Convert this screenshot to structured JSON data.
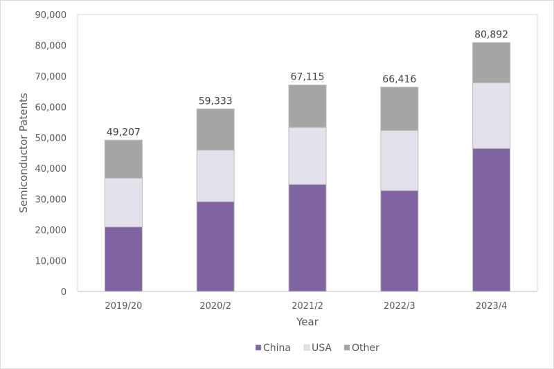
{
  "chart_data": {
    "type": "bar",
    "stacked": true,
    "title": "",
    "xlabel": "Year",
    "ylabel": "Semiconductor Patents",
    "ylim": [
      0,
      90000
    ],
    "yticks": [
      0,
      10000,
      20000,
      30000,
      40000,
      50000,
      60000,
      70000,
      80000,
      90000
    ],
    "ytick_labels": [
      "0",
      "10,000",
      "20,000",
      "30,000",
      "40,000",
      "50,000",
      "60,000",
      "70,000",
      "80,000",
      "90,000"
    ],
    "grid": false,
    "legend_position": "bottom",
    "categories": [
      "2019/20",
      "2020/2",
      "2021/2",
      "2022/3",
      "2023/4"
    ],
    "series": [
      {
        "name": "China",
        "color": "#8064a2",
        "values": [
          21000,
          29200,
          34800,
          32800,
          46500
        ]
      },
      {
        "name": "USA",
        "color": "#e4e0ec",
        "values": [
          15800,
          16700,
          18500,
          19500,
          21300
        ]
      },
      {
        "name": "Other",
        "color": "#a5a5a5",
        "values": [
          12407,
          13433,
          13815,
          14116,
          13092
        ]
      }
    ],
    "totals": [
      49207,
      59333,
      67115,
      66416,
      80892
    ],
    "total_labels": [
      "49,207",
      "59,333",
      "67,115",
      "66,416",
      "80,892"
    ]
  }
}
